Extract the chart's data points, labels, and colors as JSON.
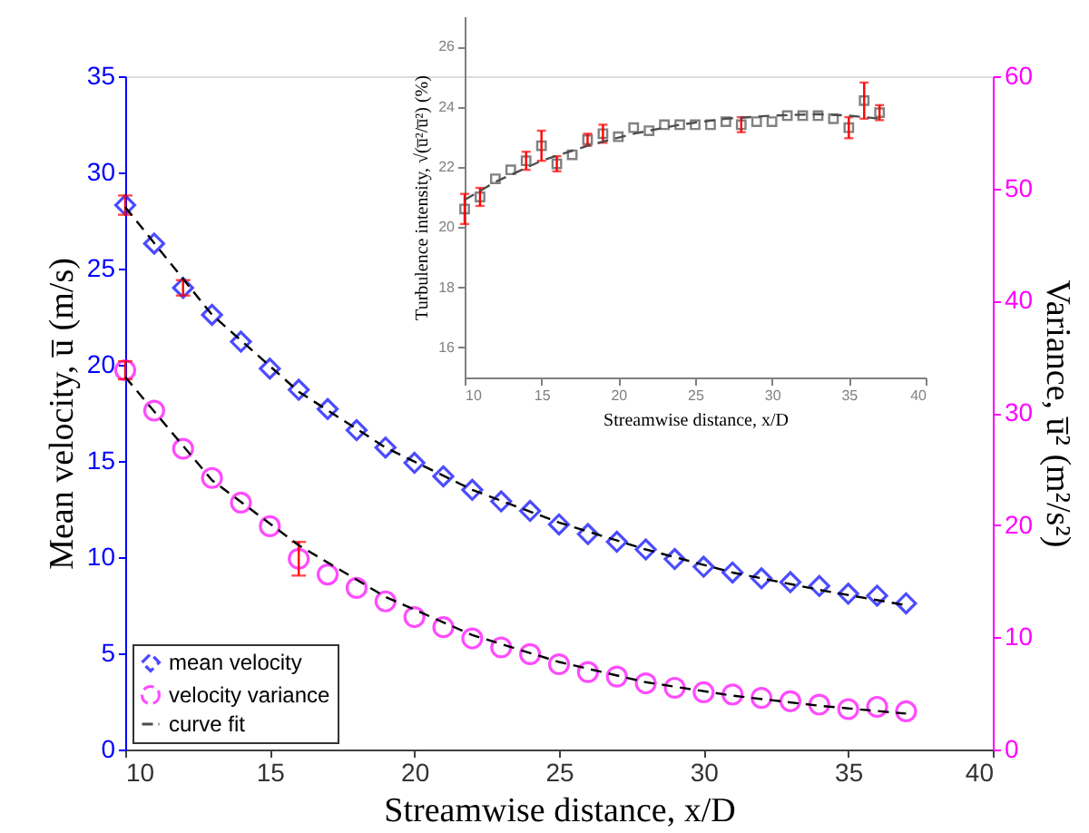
{
  "chart_data": [
    {
      "type": "scatter",
      "xlabel": "Streamwise distance, x/D",
      "ylabel": "Mean velocity, u̅ (m/s)",
      "y2label": "Variance, u̅² (m²/s²)",
      "x": [
        10,
        11,
        12,
        13,
        14,
        15,
        16,
        17,
        18,
        19,
        20,
        21,
        22,
        23,
        24,
        25,
        26,
        27,
        28,
        29,
        30,
        31,
        32,
        33,
        34,
        35,
        36,
        37
      ],
      "xlim": [
        10,
        40
      ],
      "xticks": [
        10,
        15,
        20,
        25,
        30,
        35,
        40
      ],
      "ylim": [
        0,
        35
      ],
      "yticks": [
        0,
        5,
        10,
        15,
        20,
        25,
        30,
        35
      ],
      "y2lim": [
        0,
        60
      ],
      "y2ticks": [
        0,
        10,
        20,
        30,
        40,
        50,
        60
      ],
      "legend": "bottom left",
      "series": [
        {
          "name": "mean velocity",
          "color": "#0000ff",
          "marker": "diamond",
          "axis": "y",
          "values": [
            28.3,
            26.3,
            24.0,
            22.6,
            21.2,
            19.8,
            18.7,
            17.7,
            16.6,
            15.7,
            14.9,
            14.2,
            13.5,
            12.9,
            12.4,
            11.7,
            11.2,
            10.8,
            10.4,
            9.9,
            9.5,
            9.2,
            8.9,
            8.7,
            8.5,
            8.1,
            8.0,
            7.6
          ],
          "errors": [
            0.5,
            null,
            0.4,
            null,
            null,
            null,
            null,
            null,
            null,
            null,
            null,
            null,
            null,
            null,
            null,
            null,
            null,
            null,
            null,
            null,
            null,
            null,
            null,
            null,
            null,
            null,
            null,
            null
          ]
        },
        {
          "name": "velocity variance",
          "color": "#ff00ff",
          "marker": "circle",
          "axis": "y2",
          "values": [
            33.8,
            30.2,
            26.8,
            24.2,
            22.0,
            19.9,
            17.0,
            15.6,
            14.4,
            13.2,
            11.8,
            10.9,
            9.9,
            9.1,
            8.5,
            7.6,
            6.9,
            6.5,
            5.9,
            5.5,
            5.1,
            4.9,
            4.6,
            4.3,
            4.0,
            3.6,
            3.8,
            3.4
          ],
          "errors": [
            0.8,
            null,
            null,
            null,
            null,
            null,
            1.5,
            null,
            null,
            null,
            null,
            null,
            null,
            null,
            null,
            null,
            null,
            null,
            null,
            null,
            null,
            null,
            null,
            null,
            null,
            null,
            null,
            null
          ]
        },
        {
          "name": "curve fit",
          "type": "line",
          "line_style": "dashed",
          "color": "#000000",
          "axis": "y",
          "x": [
            10,
            13,
            16,
            19,
            22,
            25,
            28,
            31,
            34,
            37
          ],
          "values": [
            28.2,
            22.6,
            18.6,
            15.7,
            13.5,
            11.8,
            10.4,
            9.2,
            8.3,
            7.5
          ]
        },
        {
          "type": "line",
          "line_style": "dashed",
          "color": "#000000",
          "axis": "y2",
          "x": [
            10,
            13,
            16,
            19,
            22,
            25,
            28,
            31,
            34,
            37
          ],
          "values": [
            33.2,
            24.0,
            18.2,
            13.6,
            10.2,
            7.8,
            6.0,
            4.8,
            3.9,
            3.2
          ]
        }
      ]
    },
    {
      "type": "scatter",
      "xlabel": "Streamwise distance, x/D",
      "ylabel": "Turbulence intensity, √(u̅²/u̅²) (%)",
      "x": [
        10,
        11,
        12,
        13,
        14,
        15,
        16,
        17,
        18,
        19,
        20,
        21,
        22,
        23,
        24,
        25,
        26,
        27,
        28,
        29,
        30,
        31,
        32,
        33,
        34,
        35,
        36,
        37
      ],
      "xlim": [
        10,
        40
      ],
      "xticks": [
        10,
        15,
        20,
        25,
        30,
        35,
        40
      ],
      "ylim": [
        15,
        27
      ],
      "yticks": [
        16,
        18,
        20,
        22,
        24,
        26
      ],
      "series": [
        {
          "color": "#4d4d4d",
          "marker": "square",
          "values": [
            20.6,
            21.0,
            21.6,
            21.9,
            22.2,
            22.7,
            22.1,
            22.4,
            22.9,
            23.1,
            23.0,
            23.3,
            23.2,
            23.4,
            23.4,
            23.4,
            23.4,
            23.5,
            23.4,
            23.5,
            23.5,
            23.7,
            23.7,
            23.7,
            23.6,
            23.3,
            24.2,
            23.8
          ],
          "errors": [
            0.5,
            0.3,
            null,
            null,
            0.3,
            0.5,
            0.25,
            null,
            0.2,
            0.3,
            null,
            null,
            null,
            null,
            null,
            null,
            null,
            null,
            0.25,
            null,
            null,
            null,
            null,
            null,
            null,
            0.35,
            0.6,
            0.25
          ]
        },
        {
          "type": "line",
          "line_style": "dashed",
          "color": "#4d4d4d",
          "x": [
            10,
            12,
            15,
            18,
            21,
            24,
            27,
            30,
            33,
            35,
            37
          ],
          "values": [
            20.9,
            21.5,
            22.2,
            22.7,
            23.1,
            23.4,
            23.6,
            23.7,
            23.75,
            23.7,
            23.6
          ]
        }
      ]
    }
  ]
}
